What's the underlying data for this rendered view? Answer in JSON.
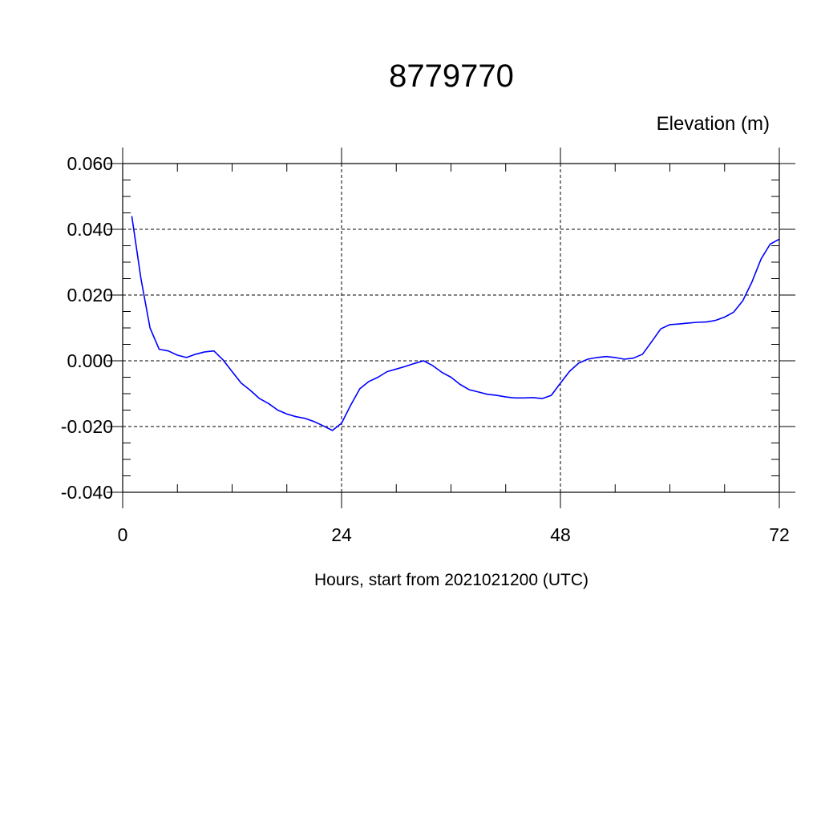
{
  "chart_data": {
    "type": "line",
    "title": "8779770",
    "ylabel": "Elevation (m)",
    "xlabel": "Hours, start from 2021021200 (UTC)",
    "xlim": [
      0,
      72
    ],
    "ylim": [
      -0.04,
      0.06
    ],
    "x_ticks": [
      0,
      24,
      48,
      72
    ],
    "x_tick_labels": [
      "0",
      "24",
      "48",
      "72"
    ],
    "x_minor_step": 6,
    "y_ticks": [
      -0.04,
      -0.02,
      0.0,
      0.02,
      0.04,
      0.06
    ],
    "y_tick_labels": [
      "-0.040",
      "-0.020",
      "0.000",
      "0.020",
      "0.040",
      "0.060"
    ],
    "y_minor_step": 0.005,
    "grid": true,
    "colors": {
      "series": "#0000ff"
    },
    "series": [
      {
        "x": [
          1,
          2,
          3,
          4,
          5,
          6,
          7,
          8,
          9,
          10,
          11,
          12,
          13,
          14,
          15,
          16,
          17,
          18,
          19,
          20,
          21,
          22,
          23,
          24,
          25,
          26,
          27,
          28,
          29,
          30,
          31,
          32,
          33,
          34,
          35,
          36,
          37,
          38,
          39,
          40,
          41,
          42,
          43,
          44,
          45,
          46,
          47,
          48,
          49,
          50,
          51,
          52,
          53,
          54,
          55,
          56,
          57,
          58,
          59,
          60,
          61,
          62,
          63,
          64,
          65,
          66,
          67,
          68,
          69,
          70,
          71,
          72
        ],
        "values": [
          0.044,
          0.025,
          0.01,
          0.0035,
          0.003,
          0.0017,
          0.001,
          0.002,
          0.0027,
          0.003,
          0.0003,
          -0.0033,
          -0.0068,
          -0.009,
          -0.0115,
          -0.013,
          -0.015,
          -0.0162,
          -0.017,
          -0.0175,
          -0.0185,
          -0.0198,
          -0.0212,
          -0.019,
          -0.0135,
          -0.0085,
          -0.0063,
          -0.005,
          -0.0033,
          -0.0025,
          -0.0017,
          -0.0008,
          0.0,
          -0.0015,
          -0.0035,
          -0.005,
          -0.0072,
          -0.0088,
          -0.0095,
          -0.0102,
          -0.0105,
          -0.011,
          -0.0113,
          -0.0113,
          -0.0112,
          -0.0115,
          -0.0105,
          -0.0068,
          -0.0032,
          -0.0007,
          0.0005,
          0.001,
          0.0013,
          0.001,
          0.0005,
          0.0008,
          0.002,
          0.0058,
          0.0097,
          0.011,
          0.0112,
          0.0115,
          0.0117,
          0.0118,
          0.0123,
          0.0133,
          0.0148,
          0.0183,
          0.024,
          0.031,
          0.0355,
          0.037
        ]
      }
    ]
  }
}
